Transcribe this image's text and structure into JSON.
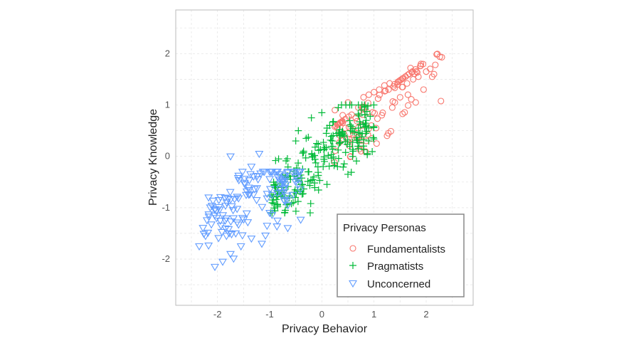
{
  "chart_data": {
    "type": "scatter",
    "xlabel": "Privacy Behavior",
    "ylabel": "Privacy Knowledge",
    "xlim": [
      -2.8,
      2.9
    ],
    "ylim": [
      -2.9,
      2.85
    ],
    "x_ticks": [
      -2,
      -1,
      0,
      1,
      2
    ],
    "y_ticks": [
      -2,
      -1,
      0,
      1,
      2
    ],
    "x_tick_labels": [
      "-2",
      "-1",
      "0",
      "1",
      "2"
    ],
    "y_tick_labels": [
      "-2",
      "-1",
      "0",
      "1",
      "2"
    ],
    "grid": true,
    "legend": {
      "title": "Privacy Personas",
      "placement": "bottom-right",
      "entries": [
        "Fundamentalists",
        "Pragmatists",
        "Unconcerned"
      ]
    },
    "series": [
      {
        "name": "Fundamentalists",
        "marker": "circle",
        "color": "#f8766d",
        "n": 130,
        "generator": {
          "x_range": [
            0.2,
            2.3
          ],
          "y_base": 0.3,
          "y_slope": 0.75,
          "spread": 0.85,
          "seed": 11
        },
        "x": [
          2.3,
          2.15,
          2.0,
          1.95,
          1.9,
          1.85,
          1.8,
          1.75,
          1.7,
          1.65,
          1.6,
          1.55,
          1.5,
          1.45,
          1.4,
          1.35,
          1.3,
          1.25,
          1.2,
          1.15,
          1.1,
          1.05,
          1.0,
          0.95,
          0.9,
          0.85,
          0.8,
          0.75,
          0.7,
          0.65,
          0.6,
          0.55,
          0.5,
          0.45,
          0.4,
          0.35,
          0.3,
          0.25
        ],
        "y": [
          1.93,
          1.6,
          1.65,
          1.3,
          1.8,
          1.55,
          1.05,
          1.5,
          1.72,
          1.2,
          1.55,
          1.35,
          1.15,
          1.4,
          1.05,
          0.95,
          1.42,
          0.4,
          1.38,
          0.8,
          1.3,
          0.25,
          1.25,
          0.6,
          1.2,
          0.3,
          1.15,
          0.1,
          0.95,
          0.75,
          0.5,
          0.0,
          1.05,
          0.55,
          0.8,
          0.4,
          0.55,
          0.9
        ]
      },
      {
        "name": "Pragmatists",
        "marker": "plus",
        "color": "#00ba38",
        "n": 240,
        "generator": {
          "x_range": [
            -1.0,
            1.0
          ],
          "y_base": 0.0,
          "y_slope": 0.8,
          "spread": 0.55,
          "seed": 23
        },
        "x": [
          -0.9,
          -0.85,
          -0.75,
          -0.7,
          -0.6,
          -0.55,
          -0.45,
          -0.4,
          -0.3,
          -0.2,
          -0.1,
          0.0,
          0.1,
          0.2,
          0.3,
          0.4,
          0.5,
          0.6,
          0.7,
          0.8,
          0.85,
          0.9,
          -0.5,
          -0.35,
          -0.25,
          0.05,
          0.15,
          0.35
        ],
        "y": [
          -0.6,
          -0.95,
          -0.75,
          -1.05,
          -0.45,
          -0.9,
          0.5,
          -0.55,
          0.35,
          0.75,
          0.25,
          0.85,
          0.55,
          0.3,
          -0.2,
          0.45,
          -0.35,
          0.1,
          0.55,
          0.2,
          0.7,
          0.3,
          0.3,
          0.1,
          -0.3,
          -0.1,
          0.6,
          0.4
        ]
      },
      {
        "name": "Unconcerned",
        "marker": "triangle-down",
        "color": "#619cff",
        "n": 150,
        "generator": {
          "x_range": [
            -2.3,
            -0.4
          ],
          "y_base": -0.1,
          "y_slope": 0.55,
          "spread": 0.7,
          "seed": 37
        },
        "x": [
          -2.35,
          -2.05,
          -1.9,
          -1.75,
          -1.65,
          -1.55,
          -1.45,
          -1.35,
          -1.25,
          -1.15,
          -1.05,
          -0.95,
          -0.85,
          -0.75,
          -0.65,
          -0.55,
          -0.45,
          -1.75,
          -1.2,
          -1.35,
          -0.85,
          -1.0
        ],
        "y": [
          -1.75,
          -2.15,
          -2.05,
          -1.9,
          -1.5,
          -1.75,
          -0.75,
          -1.6,
          -0.85,
          -1.7,
          -1.35,
          -0.75,
          -1.25,
          -0.5,
          -0.95,
          -0.75,
          -0.45,
          0.0,
          0.05,
          -0.2,
          -0.4,
          -1.1
        ]
      }
    ]
  }
}
